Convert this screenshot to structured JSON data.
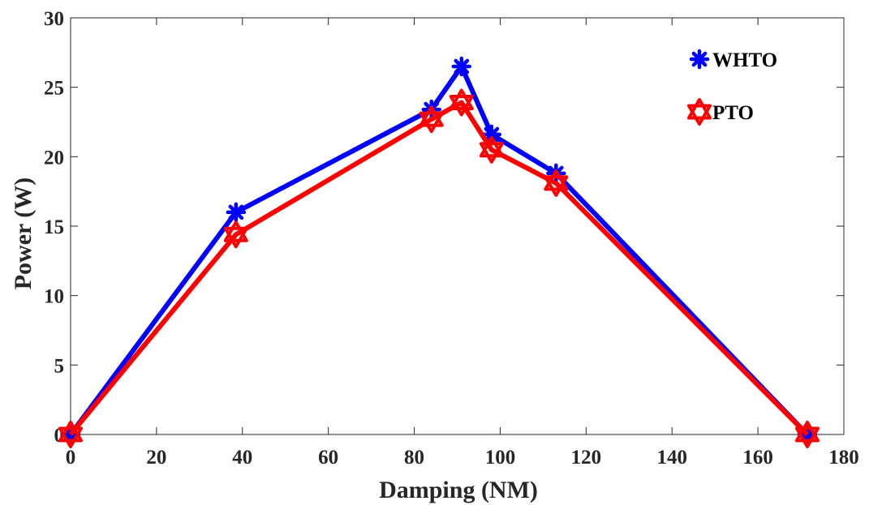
{
  "chart_data": {
    "type": "line",
    "xlabel": "Damping (NM)",
    "ylabel": "Power (W)",
    "xlim": [
      0,
      180
    ],
    "ylim": [
      0,
      30
    ],
    "xticks": [
      0,
      20,
      40,
      60,
      80,
      100,
      120,
      140,
      160,
      180
    ],
    "yticks": [
      0,
      5,
      10,
      15,
      20,
      25,
      30
    ],
    "grid": false,
    "legend_position": "top-right",
    "series": [
      {
        "name": "WHTO",
        "color": "#0000ff",
        "marker": "asterisk",
        "x": [
          0,
          38.5,
          84,
          91,
          98,
          113,
          171.5
        ],
        "y": [
          0,
          16,
          23.4,
          26.5,
          21.6,
          18.8,
          0
        ]
      },
      {
        "name": "PTO",
        "color": "#ff0000",
        "marker": "hexagram",
        "x": [
          0,
          38.5,
          84,
          91,
          98,
          113,
          171.5
        ],
        "y": [
          0,
          14.4,
          22.7,
          23.9,
          20.5,
          18.1,
          0
        ]
      }
    ]
  }
}
